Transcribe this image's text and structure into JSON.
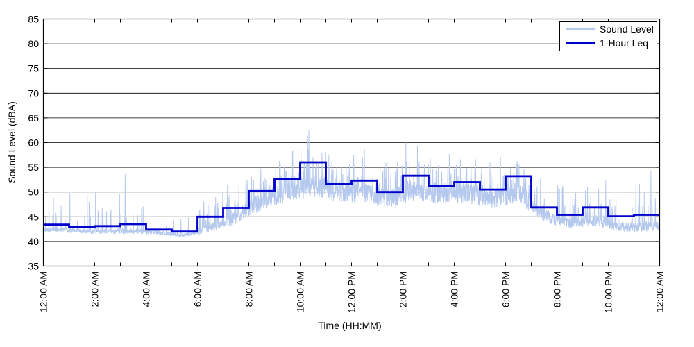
{
  "figure": {
    "title": "",
    "x_axis_title": "Time (HH:MM)",
    "y_axis_title": "Sound Level (dBA)",
    "legend_items": [
      {
        "label": "Sound Level",
        "color": "#b5c8ee"
      },
      {
        "label": "1-Hour Leq",
        "color": "#0000cc"
      }
    ]
  },
  "chart_data": {
    "type": "line",
    "title": "",
    "xlabel": "Time (HH:MM)",
    "ylabel": "Sound Level (dBA)",
    "xlim_hours": [
      0,
      24
    ],
    "ylim": [
      35,
      85
    ],
    "y_tick_step": 5,
    "y_tick_labels": [
      "35",
      "40",
      "45",
      "50",
      "55",
      "60",
      "65",
      "70",
      "75",
      "80",
      "85"
    ],
    "x_tick_hours": [
      0,
      2,
      4,
      6,
      8,
      10,
      12,
      14,
      16,
      18,
      20,
      22,
      24
    ],
    "x_tick_labels": [
      "12:00 AM",
      "2:00 AM",
      "4:00 AM",
      "6:00 AM",
      "8:00 AM",
      "10:00 AM",
      "12:00 PM",
      "2:00 PM",
      "4:00 PM",
      "6:00 PM",
      "8:00 PM",
      "10:00 PM",
      "12:00 AM"
    ],
    "minor_x_ticks_every_hours": 1,
    "grid": "horizontal",
    "grid_color": "#000000",
    "legend_position": "top-right",
    "series": [
      {
        "name": "1-Hour Leq",
        "type": "step",
        "color": "#0000cc",
        "line_width": 2.8,
        "hour_starts": [
          0,
          1,
          2,
          3,
          4,
          5,
          6,
          7,
          8,
          9,
          10,
          11,
          12,
          13,
          14,
          15,
          16,
          17,
          18,
          19,
          20,
          21,
          22,
          23
        ],
        "values_dBA": [
          43.4,
          42.9,
          43.1,
          43.5,
          42.4,
          42.0,
          45.0,
          46.8,
          50.2,
          52.6,
          56.0,
          51.7,
          52.3,
          50.0,
          53.3,
          51.2,
          52.0,
          50.5,
          53.2,
          46.9,
          45.4,
          46.9,
          45.1,
          45.4
        ]
      },
      {
        "name": "Sound Level",
        "type": "noisy-line",
        "color": "#b5c8ee",
        "line_width": 1,
        "sample_seconds": 30,
        "seed": 42,
        "representation": "per-hour visual envelope estimated from pixels",
        "hourly_envelope": [
          {
            "base": 42.4,
            "noise": 0.5,
            "spike_p": 0.16,
            "spike_max": 6.5
          },
          {
            "base": 42.1,
            "noise": 0.5,
            "spike_p": 0.14,
            "spike_max": 8.0
          },
          {
            "base": 42.0,
            "noise": 0.5,
            "spike_p": 0.14,
            "spike_max": 8.5
          },
          {
            "base": 42.1,
            "noise": 0.5,
            "spike_p": 0.14,
            "spike_max": 7.0
          },
          {
            "base": 41.8,
            "noise": 0.45,
            "spike_p": 0.12,
            "spike_max": 5.5
          },
          {
            "base": 41.2,
            "noise": 0.4,
            "spike_p": 0.08,
            "spike_max": 5.5
          },
          {
            "base": 42.8,
            "noise": 0.9,
            "spike_p": 0.22,
            "spike_max": 6.5
          },
          {
            "base": 44.8,
            "noise": 1.3,
            "spike_p": 0.28,
            "spike_max": 6.5
          },
          {
            "base": 48.0,
            "noise": 1.8,
            "spike_p": 0.3,
            "spike_max": 6.5
          },
          {
            "base": 50.0,
            "noise": 2.0,
            "spike_p": 0.3,
            "spike_max": 6.5
          },
          {
            "base": 51.3,
            "noise": 2.2,
            "spike_p": 0.32,
            "spike_max": 9.5
          },
          {
            "base": 49.8,
            "noise": 2.0,
            "spike_p": 0.3,
            "spike_max": 6.0
          },
          {
            "base": 49.8,
            "noise": 2.0,
            "spike_p": 0.3,
            "spike_max": 8.0
          },
          {
            "base": 48.5,
            "noise": 2.0,
            "spike_p": 0.3,
            "spike_max": 7.0
          },
          {
            "base": 50.3,
            "noise": 2.0,
            "spike_p": 0.3,
            "spike_max": 8.5
          },
          {
            "base": 49.3,
            "noise": 2.0,
            "spike_p": 0.3,
            "spike_max": 6.5
          },
          {
            "base": 49.8,
            "noise": 2.0,
            "spike_p": 0.3,
            "spike_max": 7.0
          },
          {
            "base": 48.5,
            "noise": 1.8,
            "spike_p": 0.3,
            "spike_max": 6.5
          },
          {
            "base": 50.0,
            "noise": 2.0,
            "spike_p": 0.3,
            "spike_max": 6.5
          },
          {
            "base": 45.2,
            "noise": 1.3,
            "spike_p": 0.24,
            "spike_max": 7.5
          },
          {
            "base": 43.8,
            "noise": 1.1,
            "spike_p": 0.2,
            "spike_max": 7.5
          },
          {
            "base": 44.3,
            "noise": 1.2,
            "spike_p": 0.24,
            "spike_max": 7.0
          },
          {
            "base": 42.8,
            "noise": 0.9,
            "spike_p": 0.2,
            "spike_max": 6.5
          },
          {
            "base": 43.0,
            "noise": 1.0,
            "spike_p": 0.2,
            "spike_max": 9.0
          }
        ],
        "notable_peaks": [
          {
            "hour": 3.18,
            "dBA": 53.6
          },
          {
            "hour": 10.28,
            "dBA": 61.4
          },
          {
            "hour": 10.34,
            "dBA": 62.6
          },
          {
            "hour": 12.5,
            "dBA": 58.8
          },
          {
            "hour": 14.12,
            "dBA": 60.0
          },
          {
            "hour": 18.72,
            "dBA": 54.6
          },
          {
            "hour": 21.9,
            "dBA": 52.3
          },
          {
            "hour": 23.66,
            "dBA": 54.2
          }
        ]
      }
    ]
  }
}
